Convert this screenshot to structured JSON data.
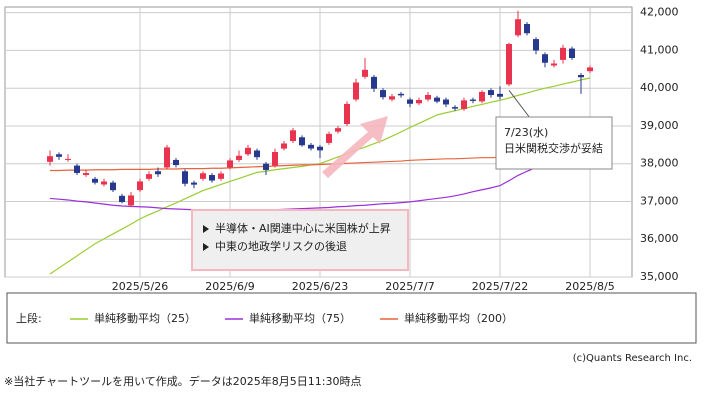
{
  "chart_data": {
    "type": "candlestick",
    "categories": [
      null,
      null,
      null,
      null,
      null,
      null,
      null,
      null,
      null,
      null,
      "2025/5/26",
      null,
      null,
      null,
      null,
      null,
      null,
      null,
      null,
      null,
      "2025/6/9",
      null,
      null,
      null,
      null,
      null,
      null,
      null,
      null,
      null,
      "2025/6/23",
      null,
      null,
      null,
      null,
      null,
      null,
      null,
      null,
      null,
      "2025/7/7",
      null,
      null,
      null,
      null,
      null,
      null,
      null,
      null,
      null,
      "2025/7/22",
      null,
      null,
      null,
      null,
      null,
      null,
      null,
      null,
      null,
      "2025/8/5"
    ],
    "open": [
      38050,
      38250,
      38100,
      37950,
      37700,
      37600,
      37450,
      37500,
      37150,
      36900,
      37300,
      37600,
      37800,
      37900,
      38100,
      37800,
      37500,
      37600,
      37700,
      37600,
      37900,
      38100,
      38250,
      38350,
      38000,
      37950,
      38400,
      38600,
      38700,
      38500,
      38450,
      38550,
      38850,
      39050,
      39700,
      40300,
      40300,
      39950,
      39700,
      39850,
      39700,
      39600,
      39700,
      39750,
      39700,
      39500,
      39450,
      39700,
      39650,
      39950,
      39850,
      40100,
      41400,
      41700,
      41300,
      40900,
      40600,
      40750,
      41050,
      40350,
      40450
    ],
    "high": [
      38350,
      38300,
      38250,
      38000,
      37850,
      37650,
      37600,
      37550,
      37200,
      37250,
      37600,
      37800,
      37900,
      38500,
      38150,
      37850,
      37550,
      37800,
      37750,
      37800,
      38150,
      38350,
      38500,
      38400,
      38050,
      38400,
      38600,
      38950,
      38750,
      38550,
      38500,
      38850,
      39000,
      39650,
      40250,
      40800,
      40350,
      40000,
      39850,
      39900,
      39750,
      39750,
      39900,
      39800,
      39750,
      39550,
      39750,
      39750,
      39950,
      40000,
      40050,
      41200,
      42050,
      41750,
      41350,
      40950,
      40750,
      41150,
      41100,
      40400,
      40600
    ],
    "low": [
      37950,
      38100,
      38050,
      37700,
      37650,
      37450,
      37400,
      37250,
      36950,
      36850,
      37250,
      37550,
      37650,
      37850,
      37900,
      37400,
      37350,
      37550,
      37500,
      37550,
      37850,
      38050,
      38200,
      38100,
      37700,
      37900,
      38350,
      38550,
      38450,
      38350,
      38150,
      38500,
      38800,
      39000,
      39650,
      40250,
      39900,
      39700,
      39650,
      39750,
      39500,
      39550,
      39650,
      39600,
      39500,
      39400,
      39400,
      39600,
      39600,
      39750,
      39700,
      40050,
      41350,
      41400,
      40900,
      40550,
      40550,
      40650,
      40750,
      39850,
      40400
    ],
    "close": [
      38200,
      38183,
      38128,
      37755,
      37753,
      37498,
      37529,
      37299,
      36985,
      37160,
      37531,
      37724,
      37722,
      38432,
      37965,
      37470,
      37446,
      37747,
      37554,
      37741,
      38088,
      38211,
      38421,
      38173,
      37834,
      38311,
      38536,
      38885,
      38488,
      38403,
      38354,
      38790,
      38942,
      39584,
      40150,
      40487,
      39986,
      39762,
      39785,
      39810,
      39587,
      39688,
      39821,
      39646,
      39569,
      39459,
      39678,
      39663,
      39901,
      39819,
      39774,
      41171,
      41826,
      41456,
      40998,
      40674,
      40654,
      41069,
      40799,
      40290,
      40549
    ],
    "up_color": "#e8344e",
    "down_color": "#27398c",
    "series": [
      {
        "name": "単純移動平均（25）",
        "color": "#9acd32",
        "values": [
          35080,
          35240,
          35400,
          35560,
          35720,
          35880,
          36010,
          36140,
          36270,
          36400,
          36540,
          36650,
          36750,
          36860,
          36960,
          37070,
          37180,
          37290,
          37370,
          37450,
          37530,
          37610,
          37690,
          37770,
          37800,
          37840,
          37870,
          37900,
          37930,
          37970,
          38000,
          38090,
          38180,
          38270,
          38360,
          38440,
          38530,
          38620,
          38730,
          38840,
          38960,
          39070,
          39180,
          39290,
          39350,
          39400,
          39460,
          39520,
          39570,
          39630,
          39680,
          39740,
          39810,
          39870,
          39940,
          40000,
          40050,
          40110,
          40160,
          40220,
          40270
        ]
      },
      {
        "name": "単純移動平均（75）",
        "color": "#9b30d9",
        "values": [
          37080,
          37060,
          37040,
          37010,
          36990,
          36960,
          36930,
          36900,
          36880,
          36870,
          36860,
          36850,
          36830,
          36810,
          36800,
          36790,
          36780,
          36770,
          36760,
          36760,
          36750,
          36750,
          36750,
          36760,
          36770,
          36780,
          36790,
          36800,
          36810,
          36820,
          36830,
          36840,
          36860,
          36870,
          36890,
          36900,
          36920,
          36940,
          36950,
          36970,
          36990,
          37020,
          37050,
          37080,
          37110,
          37150,
          37200,
          37260,
          37310,
          37360,
          37420,
          37550,
          37690,
          37800,
          37900,
          37990,
          38070,
          38150,
          38220,
          38290,
          38350
        ]
      },
      {
        "name": "単純移動平均（200）",
        "color": "#e8643c",
        "values": [
          37820,
          37820,
          37830,
          37830,
          37830,
          37840,
          37840,
          37840,
          37850,
          37850,
          37850,
          37850,
          37860,
          37860,
          37860,
          37870,
          37870,
          37870,
          37880,
          37880,
          37890,
          37900,
          37910,
          37920,
          37930,
          37940,
          37950,
          37960,
          37970,
          37970,
          37980,
          37990,
          38000,
          38010,
          38020,
          38030,
          38040,
          38050,
          38060,
          38070,
          38090,
          38100,
          38110,
          38120,
          38130,
          38130,
          38140,
          38150,
          38160,
          38160,
          38170,
          38180,
          38190,
          38200,
          38210,
          38220,
          38230,
          38240,
          38250,
          38260,
          38270
        ]
      }
    ],
    "ylim": [
      35000,
      42150
    ],
    "yticks": [
      {
        "value": 35000,
        "label": "35,000"
      },
      {
        "value": 36000,
        "label": "36,000"
      },
      {
        "value": 37000,
        "label": "37,000"
      },
      {
        "value": 38000,
        "label": "38,000"
      },
      {
        "value": 39000,
        "label": "39,000"
      },
      {
        "value": 40000,
        "label": "40,000"
      },
      {
        "value": 41000,
        "label": "41,000"
      },
      {
        "value": 42000,
        "label": "42,000"
      }
    ],
    "grid": true,
    "callout": [
      "7/23(水)",
      "日米関税交渉が妥結"
    ],
    "callout_index": 51,
    "note_box": [
      "半導体・AI関連中心に米国株が上昇",
      "中東の地政学リスクの後退"
    ],
    "legend_label": "上段:",
    "credit": "(c)Quants Research Inc.",
    "footnote": "※当社チャートツールを用いて作成。データは2025年8月5日11:30時点"
  }
}
